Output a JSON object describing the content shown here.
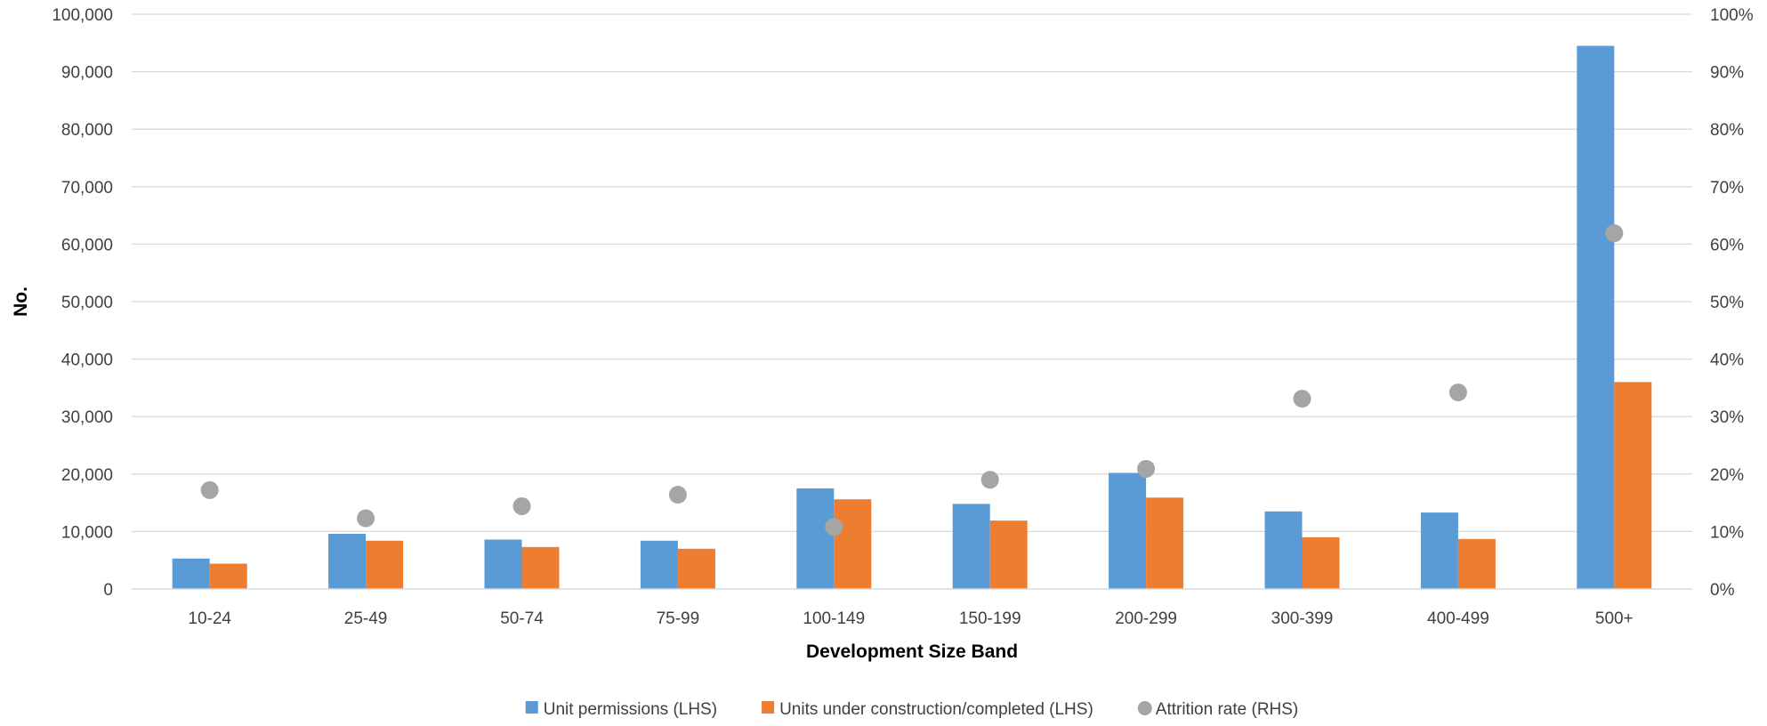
{
  "chart_data": {
    "type": "bar",
    "title": "",
    "xlabel": "Development Size Band",
    "ylabel": "No.",
    "categories": [
      "10-24",
      "25-49",
      "50-74",
      "75-99",
      "100-149",
      "150-199",
      "200-299",
      "300-399",
      "400-499",
      "500+"
    ],
    "ylim": [
      0,
      100000
    ],
    "y_ticks": [
      "0",
      "10,000",
      "20,000",
      "30,000",
      "40,000",
      "50,000",
      "60,000",
      "70,000",
      "80,000",
      "90,000",
      "100,000"
    ],
    "y2lim": [
      0,
      1
    ],
    "y2_ticks": [
      "0%",
      "10%",
      "20%",
      "30%",
      "40%",
      "50%",
      "60%",
      "70%",
      "80%",
      "90%",
      "100%"
    ],
    "grid": true,
    "legend_position": "bottom",
    "series": [
      {
        "name": "Unit permissions (LHS)",
        "type": "bar",
        "axis": "left",
        "color": "#5B9BD5",
        "values": [
          5300,
          9600,
          8600,
          8400,
          17500,
          14800,
          20200,
          13500,
          13300,
          94500
        ]
      },
      {
        "name": "Units under construction/completed (LHS)",
        "type": "bar",
        "axis": "left",
        "color": "#ED7D31",
        "values": [
          4400,
          8400,
          7300,
          7000,
          15600,
          11900,
          15900,
          9000,
          8700,
          36000
        ]
      },
      {
        "name": "Attrition rate (RHS)",
        "type": "scatter",
        "axis": "right",
        "color": "#A5A5A5",
        "values": [
          0.172,
          0.123,
          0.144,
          0.164,
          0.108,
          0.19,
          0.209,
          0.331,
          0.342,
          0.619
        ]
      }
    ]
  }
}
